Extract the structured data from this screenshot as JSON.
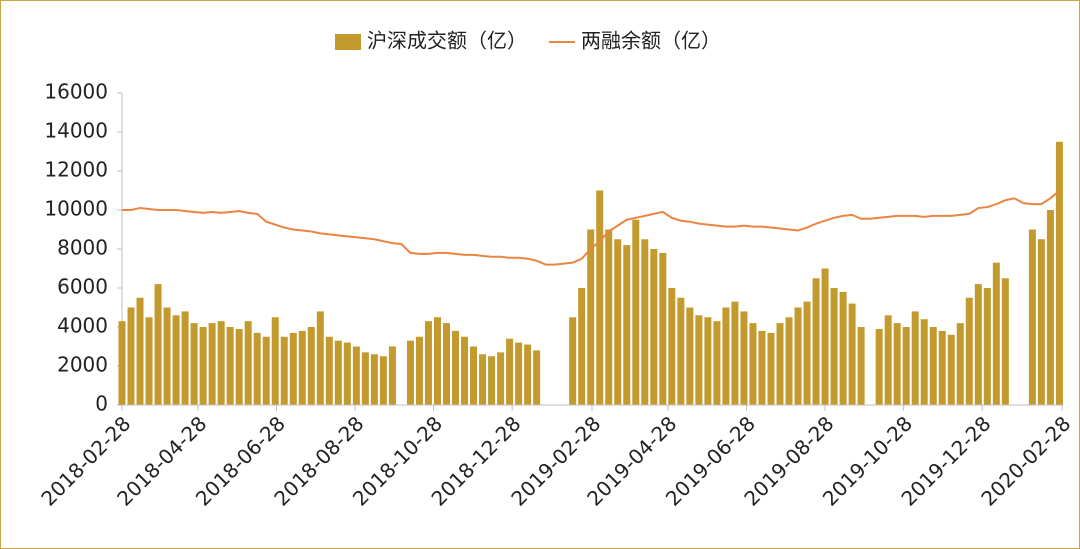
{
  "chart_data": {
    "type": "bar-line",
    "x": [
      "2018-02-28",
      "2018-03-07",
      "2018-03-14",
      "2018-03-21",
      "2018-03-28",
      "2018-04-04",
      "2018-04-11",
      "2018-04-18",
      "2018-04-25",
      "2018-05-02",
      "2018-05-09",
      "2018-05-16",
      "2018-05-23",
      "2018-05-30",
      "2018-06-06",
      "2018-06-13",
      "2018-06-20",
      "2018-06-27",
      "2018-07-04",
      "2018-07-11",
      "2018-07-18",
      "2018-07-25",
      "2018-08-01",
      "2018-08-08",
      "2018-08-15",
      "2018-08-22",
      "2018-08-29",
      "2018-09-05",
      "2018-09-12",
      "2018-09-19",
      "2018-09-26",
      "2018-10-03",
      "2018-10-10",
      "2018-10-17",
      "2018-10-24",
      "2018-10-31",
      "2018-11-07",
      "2018-11-14",
      "2018-11-21",
      "2018-11-28",
      "2018-12-05",
      "2018-12-12",
      "2018-12-19",
      "2018-12-26",
      "2019-01-02",
      "2019-01-09",
      "2019-01-16",
      "2019-01-23",
      "2019-01-30",
      "2019-02-06",
      "2019-02-13",
      "2019-02-20",
      "2019-02-27",
      "2019-03-06",
      "2019-03-13",
      "2019-03-20",
      "2019-03-27",
      "2019-04-03",
      "2019-04-10",
      "2019-04-17",
      "2019-04-24",
      "2019-05-01",
      "2019-05-08",
      "2019-05-15",
      "2019-05-22",
      "2019-05-29",
      "2019-06-05",
      "2019-06-12",
      "2019-06-19",
      "2019-06-26",
      "2019-07-03",
      "2019-07-10",
      "2019-07-17",
      "2019-07-24",
      "2019-07-31",
      "2019-08-07",
      "2019-08-14",
      "2019-08-21",
      "2019-08-28",
      "2019-09-04",
      "2019-09-11",
      "2019-09-18",
      "2019-09-25",
      "2019-10-02",
      "2019-10-09",
      "2019-10-16",
      "2019-10-23",
      "2019-10-30",
      "2019-11-06",
      "2019-11-13",
      "2019-11-20",
      "2019-11-27",
      "2019-12-04",
      "2019-12-11",
      "2019-12-18",
      "2019-12-25",
      "2020-01-01",
      "2020-01-08",
      "2020-01-15",
      "2020-01-22",
      "2020-01-29",
      "2020-02-05",
      "2020-02-12",
      "2020-02-19",
      "2020-02-26"
    ],
    "series": [
      {
        "name": "沪深成交额（亿）",
        "type": "bar",
        "color": "#c39a2d",
        "values": [
          4300,
          5000,
          5500,
          4500,
          6200,
          5000,
          4600,
          4800,
          4200,
          4000,
          4200,
          4300,
          4000,
          3900,
          4300,
          3700,
          3500,
          4500,
          3500,
          3700,
          3800,
          4000,
          4800,
          3500,
          3300,
          3200,
          3000,
          2700,
          2600,
          2500,
          3000,
          null,
          3300,
          3500,
          4300,
          4500,
          4200,
          3800,
          3500,
          3000,
          2600,
          2500,
          2700,
          3400,
          3200,
          3100,
          2800,
          null,
          null,
          null,
          4500,
          6000,
          9000,
          11000,
          9000,
          8500,
          8200,
          9500,
          8500,
          8000,
          7800,
          6000,
          5500,
          5000,
          4600,
          4500,
          4300,
          5000,
          5300,
          4800,
          4200,
          3800,
          3700,
          4200,
          4500,
          5000,
          5300,
          6500,
          7000,
          6000,
          5800,
          5200,
          4000,
          null,
          3900,
          4600,
          4200,
          4000,
          4800,
          4400,
          4000,
          3800,
          3600,
          4200,
          5500,
          6200,
          6000,
          7300,
          6500,
          null,
          null,
          9000,
          8500,
          10000,
          13500
        ]
      },
      {
        "name": "两融余额（亿）",
        "type": "line",
        "color": "#ea8542",
        "values": [
          10000,
          10000,
          10100,
          10050,
          10000,
          10000,
          10000,
          9950,
          9900,
          9850,
          9900,
          9850,
          9900,
          9950,
          9850,
          9800,
          9400,
          9250,
          9100,
          9000,
          8950,
          8900,
          8800,
          8750,
          8700,
          8650,
          8600,
          8550,
          8500,
          8400,
          8300,
          8250,
          7800,
          7750,
          7750,
          7800,
          7800,
          7750,
          7700,
          7700,
          7650,
          7600,
          7600,
          7550,
          7550,
          7500,
          7400,
          7200,
          7200,
          7250,
          7300,
          7500,
          8000,
          8400,
          8900,
          9200,
          9500,
          9600,
          9700,
          9800,
          9900,
          9600,
          9450,
          9400,
          9300,
          9250,
          9200,
          9150,
          9150,
          9200,
          9150,
          9150,
          9100,
          9050,
          9000,
          8950,
          9100,
          9300,
          9450,
          9600,
          9700,
          9750,
          9550,
          9550,
          9600,
          9650,
          9700,
          9700,
          9700,
          9650,
          9700,
          9700,
          9700,
          9750,
          9800,
          10100,
          10150,
          10300,
          10500,
          10600,
          10350,
          10300,
          10300,
          10600,
          11000
        ]
      }
    ],
    "xlim": [
      "2018-02-28",
      "2020-02-28"
    ],
    "xticks": [
      "2018-02-28",
      "2018-04-28",
      "2018-06-28",
      "2018-08-28",
      "2018-10-28",
      "2018-12-28",
      "2019-02-28",
      "2019-04-28",
      "2019-06-28",
      "2019-08-28",
      "2019-10-28",
      "2019-12-28",
      "2020-02-28"
    ],
    "ylim": [
      0,
      16000
    ],
    "yticks": [
      0,
      2000,
      4000,
      6000,
      8000,
      10000,
      12000,
      14000,
      16000
    ],
    "legend": "top"
  }
}
